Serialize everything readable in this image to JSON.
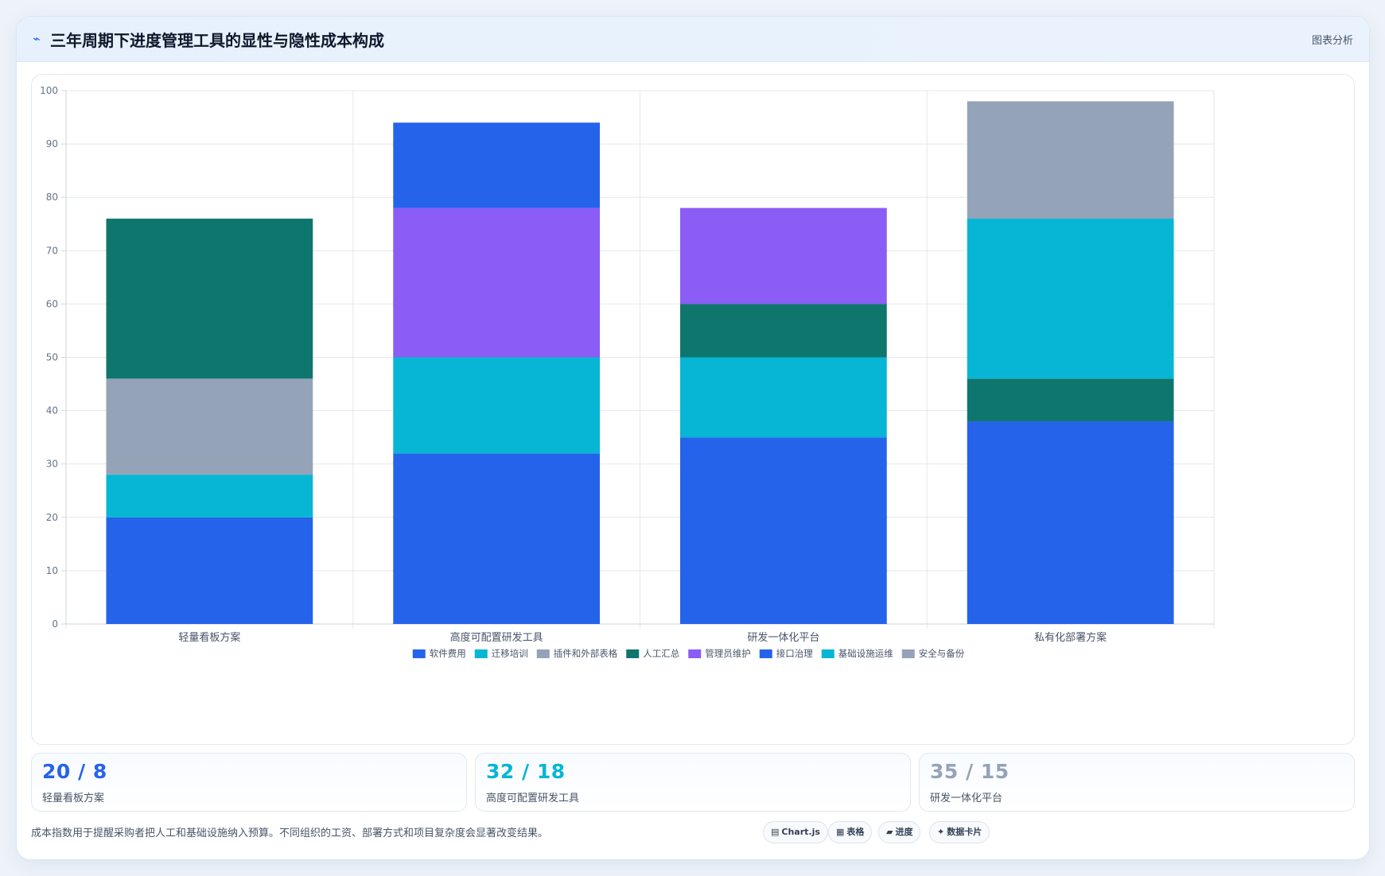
{
  "header": {
    "icon": "chart-line-icon",
    "title": "三年周期下进度管理工具的显性与隐性成本构成",
    "tag": "图表分析"
  },
  "chart_data": {
    "type": "bar",
    "stacked": true,
    "categories": [
      "轻量看板方案",
      "高度可配置研发工具",
      "研发一体化平台",
      "私有化部署方案"
    ],
    "ylim": [
      0,
      100
    ],
    "yticks": [
      0,
      10,
      20,
      30,
      40,
      50,
      60,
      70,
      80,
      90,
      100
    ],
    "grid": true,
    "legend_position": "bottom",
    "series": [
      {
        "name": "软件费用",
        "color": "#2563eb",
        "values": [
          20,
          32,
          35,
          38
        ]
      },
      {
        "name": "迁移培训",
        "color": "#06b6d4",
        "values": [
          8,
          18,
          15,
          0
        ]
      },
      {
        "name": "插件和外部表格",
        "color": "#94a3b8",
        "values": [
          18,
          0,
          0,
          0
        ]
      },
      {
        "name": "人工汇总",
        "color": "#0f766e",
        "values": [
          30,
          0,
          10,
          8
        ]
      },
      {
        "name": "管理员维护",
        "color": "#8b5cf6",
        "values": [
          0,
          28,
          18,
          0
        ]
      },
      {
        "name": "接口治理",
        "color": "#2563eb",
        "values": [
          0,
          16,
          0,
          0
        ]
      },
      {
        "name": "基础设施运维",
        "color": "#06b6d4",
        "values": [
          0,
          0,
          0,
          30
        ]
      },
      {
        "name": "安全与备份",
        "color": "#94a3b8",
        "values": [
          0,
          0,
          0,
          22
        ]
      }
    ]
  },
  "stats": [
    {
      "value": "20 / 8",
      "label": "轻量看板方案",
      "color": "#2563eb"
    },
    {
      "value": "32 / 18",
      "label": "高度可配置研发工具",
      "color": "#06b6d4"
    },
    {
      "value": "35 / 15",
      "label": "研发一体化平台",
      "color": "#94a3b8"
    }
  ],
  "footer": {
    "note": "成本指数用于提醒采购者把人工和基础设施纳入预算。不同组织的工资、部署方式和项目复杂度会显著改变结果。",
    "chips": [
      {
        "icon": "▤",
        "label": "Chart.js"
      },
      {
        "icon": "▦",
        "label": "表格"
      },
      {
        "icon": "▰",
        "label": "进度"
      },
      {
        "icon": "✦",
        "label": "数据卡片"
      }
    ]
  }
}
